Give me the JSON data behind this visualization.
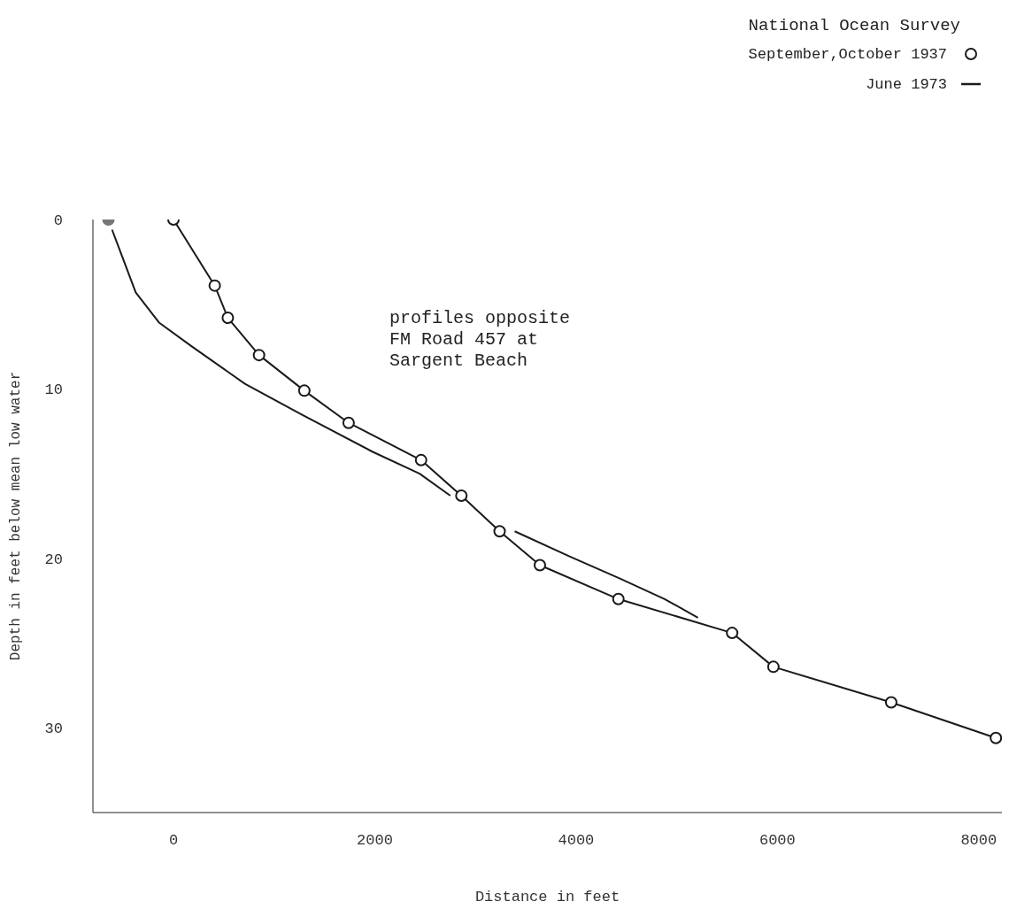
{
  "chart_data": {
    "type": "line",
    "xlabel": "Distance in feet",
    "ylabel": "Depth in feet below mean low water",
    "legend_title": "National Ocean Survey",
    "legend": "top right",
    "xlim": [
      -800,
      8230
    ],
    "xticks": [
      0,
      2000,
      4000,
      6000,
      8000
    ],
    "ylim": [
      35,
      0
    ],
    "yticks": [
      0,
      10,
      20,
      30
    ],
    "annotations": [
      "profiles opposite\nFM Road 457 at\nSargent Beach"
    ],
    "series": [
      {
        "name": "September,October 1937",
        "color": "#1a1a1a",
        "marker": "circle",
        "x": [
          0,
          410,
          540,
          850,
          1300,
          1740,
          2460,
          2860,
          3240,
          3640,
          4420,
          5550,
          5960,
          7130,
          8170
        ],
        "values": [
          0,
          3.9,
          5.8,
          8,
          10.1,
          12,
          14.2,
          16.3,
          18.4,
          20.4,
          22.4,
          24.4,
          26.4,
          28.5,
          30.6
        ]
      },
      {
        "name": "June 1973",
        "color": "#1a1a1a",
        "marker": "none",
        "x": [
          -610,
          -515,
          -375,
          -140,
          185,
          710,
          1270,
          1975,
          2445,
          2750,
          3000,
          3390,
          3940,
          4440,
          4880,
          5210
        ],
        "values": [
          0.6,
          2.1,
          4.3,
          6.1,
          7.5,
          9.7,
          11.5,
          13.7,
          15,
          16.3,
          null,
          18.4,
          19.9,
          21.2,
          22.4,
          23.5
        ]
      },
      {
        "type": "scatter",
        "color": "#777777",
        "marker": "circle",
        "x": [
          -646
        ],
        "values": [
          0
        ]
      }
    ]
  }
}
